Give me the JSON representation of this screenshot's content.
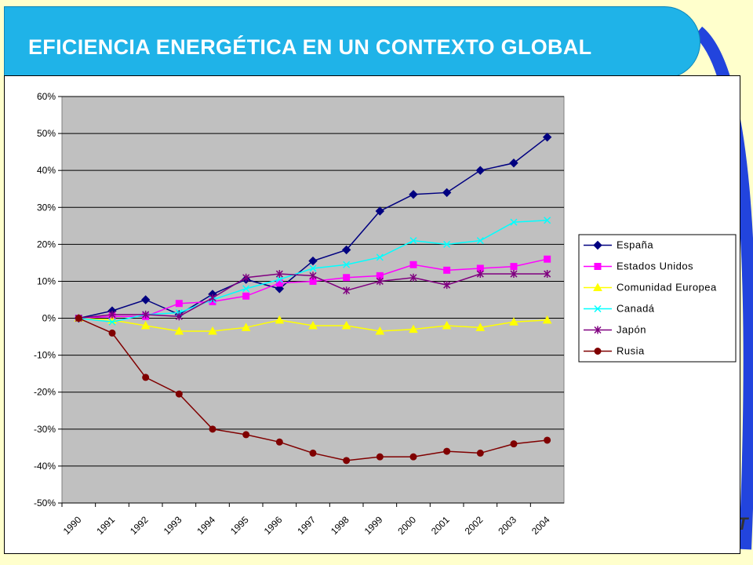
{
  "header": {
    "title": "EFICIENCIA ENERGÉTICA EN UN CONTEXTO GLOBAL"
  },
  "colors": {
    "background": "#ffffcc",
    "title_bar": "#1fb3e8",
    "plot_area": "#c0c0c0"
  },
  "chart_data": {
    "type": "line",
    "title": "",
    "xlabel": "",
    "ylabel": "",
    "x": [
      "1990",
      "1991",
      "1992",
      "1993",
      "1994",
      "1995",
      "1996",
      "1997",
      "1998",
      "1999",
      "2000",
      "2001",
      "2002",
      "2003",
      "2004"
    ],
    "ylim": [
      -50,
      60
    ],
    "yticks": [
      "60%",
      "50%",
      "40%",
      "30%",
      "20%",
      "10%",
      "0%",
      "-10%",
      "-20%",
      "-30%",
      "-40%",
      "-50%"
    ],
    "grid": true,
    "legend_position": "right",
    "series": [
      {
        "name": "España",
        "color": "#000080",
        "marker": "diamond",
        "values": [
          0,
          2,
          5,
          1,
          6.5,
          10.5,
          8,
          15.5,
          18.5,
          29,
          33.5,
          34,
          40,
          42,
          49
        ]
      },
      {
        "name": "Estados Unidos",
        "color": "#ff00ff",
        "marker": "square",
        "values": [
          0,
          0.5,
          0.5,
          4,
          4.5,
          6,
          9.5,
          10,
          11,
          11.5,
          14.5,
          13,
          13.5,
          14,
          16
        ]
      },
      {
        "name": "Comunidad Europea",
        "color": "#ffff00",
        "marker": "triangle",
        "values": [
          0,
          -0.5,
          -2,
          -3.5,
          -3.5,
          -2.5,
          -0.5,
          -2,
          -2,
          -3.5,
          -3,
          -2,
          -2.5,
          -1,
          -0.5
        ]
      },
      {
        "name": "Canadá",
        "color": "#00ffff",
        "marker": "x",
        "values": [
          0,
          -1,
          1,
          1.5,
          5,
          8,
          10.5,
          13.5,
          14.5,
          16.5,
          21,
          20,
          21,
          26,
          26.5
        ]
      },
      {
        "name": "Japón",
        "color": "#800080",
        "marker": "star",
        "values": [
          0,
          1,
          1,
          0.5,
          5.5,
          11,
          12,
          11.5,
          7.5,
          10,
          11,
          9,
          12,
          12,
          12
        ]
      },
      {
        "name": "Rusia",
        "color": "#800000",
        "marker": "circle",
        "values": [
          0,
          -4,
          -16,
          -20.5,
          -30,
          -31.5,
          -33.5,
          -36.5,
          -38.5,
          -37.5,
          -37.5,
          -36,
          -36.5,
          -34,
          -33
        ]
      }
    ]
  }
}
